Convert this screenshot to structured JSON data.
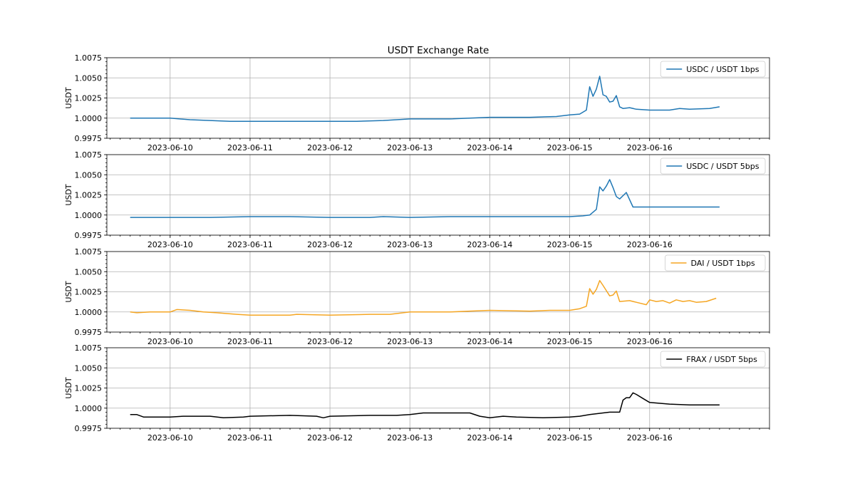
{
  "chart_data": {
    "type": "line",
    "title": "USDT Exchange Rate",
    "x_type": "datetime",
    "xlim": [
      "2023-06-09 05:00",
      "2023-06-17 12:00"
    ],
    "x_tick_labels": [
      "2023-06-10",
      "2023-06-11",
      "2023-06-12",
      "2023-06-13",
      "2023-06-14",
      "2023-06-15",
      "2023-06-16"
    ],
    "grid": true,
    "legend_position": "upper right",
    "subplots": [
      {
        "ylabel": "USDT",
        "ylim": [
          0.9975,
          1.0075
        ],
        "y_ticks": [
          0.9975,
          1.0,
          1.0025,
          1.005,
          1.0075
        ],
        "y_tick_labels": [
          "0.9975",
          "1.0000",
          "1.0025",
          "1.0050",
          "1.0075"
        ],
        "series": [
          {
            "name": "USDC / USDT 1bps",
            "color": "#1f77b4",
            "points": [
              [
                "2023-06-09 12:00",
                1.0
              ],
              [
                "2023-06-09 18:00",
                1.0
              ],
              [
                "2023-06-10 00:00",
                1.0
              ],
              [
                "2023-06-10 06:00",
                0.9998
              ],
              [
                "2023-06-10 12:00",
                0.9997
              ],
              [
                "2023-06-10 18:00",
                0.9996
              ],
              [
                "2023-06-11 00:00",
                0.9996
              ],
              [
                "2023-06-11 12:00",
                0.9996
              ],
              [
                "2023-06-12 00:00",
                0.9996
              ],
              [
                "2023-06-12 08:00",
                0.9996
              ],
              [
                "2023-06-12 16:00",
                0.9997
              ],
              [
                "2023-06-13 00:00",
                0.9999
              ],
              [
                "2023-06-13 12:00",
                0.9999
              ],
              [
                "2023-06-14 00:00",
                1.0001
              ],
              [
                "2023-06-14 12:00",
                1.0001
              ],
              [
                "2023-06-14 20:00",
                1.0002
              ],
              [
                "2023-06-15 00:00",
                1.0004
              ],
              [
                "2023-06-15 03:00",
                1.0005
              ],
              [
                "2023-06-15 05:00",
                1.001
              ],
              [
                "2023-06-15 06:00",
                1.0039
              ],
              [
                "2023-06-15 07:00",
                1.0027
              ],
              [
                "2023-06-15 08:00",
                1.0036
              ],
              [
                "2023-06-15 09:00",
                1.0052
              ],
              [
                "2023-06-15 10:00",
                1.0029
              ],
              [
                "2023-06-15 11:00",
                1.0027
              ],
              [
                "2023-06-15 12:00",
                1.002
              ],
              [
                "2023-06-15 13:00",
                1.0021
              ],
              [
                "2023-06-15 14:00",
                1.0028
              ],
              [
                "2023-06-15 15:00",
                1.0014
              ],
              [
                "2023-06-15 16:00",
                1.0012
              ],
              [
                "2023-06-15 18:00",
                1.0013
              ],
              [
                "2023-06-15 20:00",
                1.0011
              ],
              [
                "2023-06-16 00:00",
                1.001
              ],
              [
                "2023-06-16 06:00",
                1.001
              ],
              [
                "2023-06-16 09:00",
                1.0012
              ],
              [
                "2023-06-16 12:00",
                1.0011
              ],
              [
                "2023-06-16 18:00",
                1.0012
              ],
              [
                "2023-06-16 21:00",
                1.0014
              ]
            ]
          }
        ]
      },
      {
        "ylabel": "USDT",
        "ylim": [
          0.9975,
          1.0075
        ],
        "y_ticks": [
          0.9975,
          1.0,
          1.0025,
          1.005,
          1.0075
        ],
        "y_tick_labels": [
          "0.9975",
          "1.0000",
          "1.0025",
          "1.0050",
          "1.0075"
        ],
        "series": [
          {
            "name": "USDC / USDT 5bps",
            "color": "#1f77b4",
            "points": [
              [
                "2023-06-09 12:00",
                0.9997
              ],
              [
                "2023-06-10 00:00",
                0.9997
              ],
              [
                "2023-06-10 12:00",
                0.9997
              ],
              [
                "2023-06-11 00:00",
                0.9998
              ],
              [
                "2023-06-11 12:00",
                0.9998
              ],
              [
                "2023-06-12 00:00",
                0.9997
              ],
              [
                "2023-06-12 12:00",
                0.9997
              ],
              [
                "2023-06-12 16:00",
                0.9998
              ],
              [
                "2023-06-13 00:00",
                0.9997
              ],
              [
                "2023-06-13 12:00",
                0.9998
              ],
              [
                "2023-06-14 00:00",
                0.9998
              ],
              [
                "2023-06-14 12:00",
                0.9998
              ],
              [
                "2023-06-15 00:00",
                0.9998
              ],
              [
                "2023-06-15 04:00",
                0.9999
              ],
              [
                "2023-06-15 06:00",
                1.0
              ],
              [
                "2023-06-15 08:00",
                1.0007
              ],
              [
                "2023-06-15 09:00",
                1.0035
              ],
              [
                "2023-06-15 10:00",
                1.003
              ],
              [
                "2023-06-15 11:00",
                1.0036
              ],
              [
                "2023-06-15 12:00",
                1.0044
              ],
              [
                "2023-06-15 13:00",
                1.0034
              ],
              [
                "2023-06-15 14:00",
                1.0023
              ],
              [
                "2023-06-15 15:00",
                1.002
              ],
              [
                "2023-06-15 17:00",
                1.0028
              ],
              [
                "2023-06-15 19:00",
                1.001
              ],
              [
                "2023-06-16 00:00",
                1.001
              ],
              [
                "2023-06-16 12:00",
                1.001
              ],
              [
                "2023-06-16 21:00",
                1.001
              ]
            ]
          }
        ]
      },
      {
        "ylabel": "USDT",
        "ylim": [
          0.9975,
          1.0075
        ],
        "y_ticks": [
          0.9975,
          1.0,
          1.0025,
          1.005,
          1.0075
        ],
        "y_tick_labels": [
          "0.9975",
          "1.0000",
          "1.0025",
          "1.0050",
          "1.0075"
        ],
        "series": [
          {
            "name": "DAI / USDT 1bps",
            "color": "#f5a623",
            "points": [
              [
                "2023-06-09 12:00",
                1.0
              ],
              [
                "2023-06-09 14:00",
                0.9999
              ],
              [
                "2023-06-09 18:00",
                1.0
              ],
              [
                "2023-06-10 00:00",
                1.0
              ],
              [
                "2023-06-10 02:00",
                1.0003
              ],
              [
                "2023-06-10 06:00",
                1.0002
              ],
              [
                "2023-06-10 10:00",
                1.0
              ],
              [
                "2023-06-10 14:00",
                0.9999
              ],
              [
                "2023-06-10 20:00",
                0.9997
              ],
              [
                "2023-06-11 00:00",
                0.9996
              ],
              [
                "2023-06-11 12:00",
                0.9996
              ],
              [
                "2023-06-11 14:00",
                0.9997
              ],
              [
                "2023-06-12 00:00",
                0.9996
              ],
              [
                "2023-06-12 12:00",
                0.9997
              ],
              [
                "2023-06-12 18:00",
                0.9997
              ],
              [
                "2023-06-13 00:00",
                1.0
              ],
              [
                "2023-06-13 12:00",
                1.0
              ],
              [
                "2023-06-13 18:00",
                1.0001
              ],
              [
                "2023-06-14 00:00",
                1.0002
              ],
              [
                "2023-06-14 12:00",
                1.0001
              ],
              [
                "2023-06-14 18:00",
                1.0002
              ],
              [
                "2023-06-15 00:00",
                1.0002
              ],
              [
                "2023-06-15 03:00",
                1.0004
              ],
              [
                "2023-06-15 05:00",
                1.0007
              ],
              [
                "2023-06-15 06:00",
                1.0029
              ],
              [
                "2023-06-15 07:00",
                1.0022
              ],
              [
                "2023-06-15 08:00",
                1.0028
              ],
              [
                "2023-06-15 09:00",
                1.0039
              ],
              [
                "2023-06-15 10:00",
                1.0033
              ],
              [
                "2023-06-15 12:00",
                1.002
              ],
              [
                "2023-06-15 13:00",
                1.0021
              ],
              [
                "2023-06-15 14:00",
                1.0026
              ],
              [
                "2023-06-15 15:00",
                1.0013
              ],
              [
                "2023-06-15 18:00",
                1.0014
              ],
              [
                "2023-06-15 20:00",
                1.0012
              ],
              [
                "2023-06-15 23:00",
                1.0009
              ],
              [
                "2023-06-16 00:00",
                1.0015
              ],
              [
                "2023-06-16 02:00",
                1.0013
              ],
              [
                "2023-06-16 04:00",
                1.0014
              ],
              [
                "2023-06-16 06:00",
                1.0011
              ],
              [
                "2023-06-16 08:00",
                1.0015
              ],
              [
                "2023-06-16 10:00",
                1.0013
              ],
              [
                "2023-06-16 12:00",
                1.0014
              ],
              [
                "2023-06-16 14:00",
                1.0012
              ],
              [
                "2023-06-16 17:00",
                1.0013
              ],
              [
                "2023-06-16 20:00",
                1.0017
              ]
            ]
          }
        ]
      },
      {
        "ylabel": "USDT",
        "ylim": [
          0.9975,
          1.0075
        ],
        "y_ticks": [
          0.9975,
          1.0,
          1.0025,
          1.005,
          1.0075
        ],
        "y_tick_labels": [
          "0.9975",
          "1.0000",
          "1.0025",
          "1.0050",
          "1.0075"
        ],
        "series": [
          {
            "name": "FRAX / USDT 5bps",
            "color": "#000000",
            "points": [
              [
                "2023-06-09 12:00",
                0.9992
              ],
              [
                "2023-06-09 14:00",
                0.9992
              ],
              [
                "2023-06-09 16:00",
                0.9989
              ],
              [
                "2023-06-09 20:00",
                0.9989
              ],
              [
                "2023-06-10 00:00",
                0.9989
              ],
              [
                "2023-06-10 04:00",
                0.999
              ],
              [
                "2023-06-10 12:00",
                0.999
              ],
              [
                "2023-06-10 16:00",
                0.9988
              ],
              [
                "2023-06-10 22:00",
                0.9989
              ],
              [
                "2023-06-11 00:00",
                0.999
              ],
              [
                "2023-06-11 12:00",
                0.9991
              ],
              [
                "2023-06-11 20:00",
                0.999
              ],
              [
                "2023-06-11 22:00",
                0.9988
              ],
              [
                "2023-06-12 00:00",
                0.999
              ],
              [
                "2023-06-12 12:00",
                0.9991
              ],
              [
                "2023-06-12 20:00",
                0.9991
              ],
              [
                "2023-06-13 00:00",
                0.9992
              ],
              [
                "2023-06-13 04:00",
                0.9994
              ],
              [
                "2023-06-13 12:00",
                0.9994
              ],
              [
                "2023-06-13 18:00",
                0.9994
              ],
              [
                "2023-06-13 21:00",
                0.999
              ],
              [
                "2023-06-14 00:00",
                0.9988
              ],
              [
                "2023-06-14 04:00",
                0.999
              ],
              [
                "2023-06-14 08:00",
                0.9989
              ],
              [
                "2023-06-14 16:00",
                0.9988
              ],
              [
                "2023-06-15 00:00",
                0.9989
              ],
              [
                "2023-06-15 03:00",
                0.999
              ],
              [
                "2023-06-15 06:00",
                0.9992
              ],
              [
                "2023-06-15 12:00",
                0.9995
              ],
              [
                "2023-06-15 15:00",
                0.9995
              ],
              [
                "2023-06-15 16:00",
                1.001
              ],
              [
                "2023-06-15 17:00",
                1.0013
              ],
              [
                "2023-06-15 18:00",
                1.0013
              ],
              [
                "2023-06-15 19:00",
                1.0019
              ],
              [
                "2023-06-15 20:00",
                1.0017
              ],
              [
                "2023-06-15 22:00",
                1.0012
              ],
              [
                "2023-06-16 00:00",
                1.0007
              ],
              [
                "2023-06-16 06:00",
                1.0005
              ],
              [
                "2023-06-16 12:00",
                1.0004
              ],
              [
                "2023-06-16 21:00",
                1.0004
              ]
            ]
          }
        ]
      }
    ]
  }
}
